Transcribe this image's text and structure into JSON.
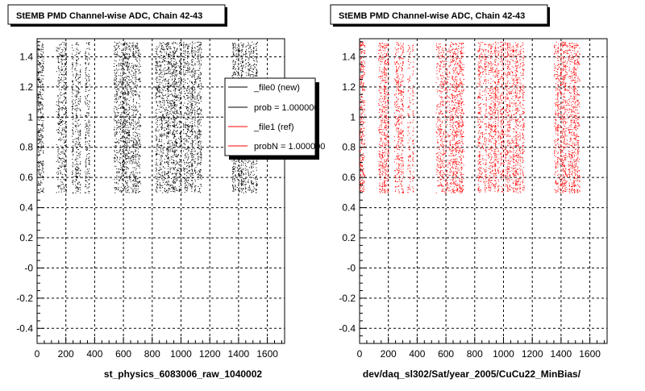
{
  "chart_data": [
    {
      "type": "scatter",
      "title": "StEMB PMD Channel-wise ADC, Chain 42-43",
      "xlabel": "st_physics_6083006_raw_1040002",
      "ylabel": "",
      "xlim": [
        0,
        1720
      ],
      "ylim": [
        -0.5,
        1.52
      ],
      "xticks": [
        0,
        200,
        400,
        600,
        800,
        1000,
        1200,
        1400,
        1600
      ],
      "xtick_labels": [
        "0",
        "200",
        "400",
        "600",
        "800",
        "1000",
        "1200",
        "1400",
        "1600"
      ],
      "yticks": [
        -0.4,
        -0.2,
        0,
        0.2,
        0.4,
        0.6,
        0.8,
        1,
        1.2,
        1.4
      ],
      "ytick_labels": [
        "-0.4",
        "-0.2",
        "-0",
        "0.2",
        "0.4",
        "0.6",
        "0.8",
        "1",
        "1.2",
        "1.4"
      ],
      "grid": true,
      "legend_position": "top-right",
      "legend": [
        {
          "label": "_file0 (new)",
          "color": "#000000"
        },
        {
          "label": "prob = 1.000000",
          "color": "#000000"
        },
        {
          "label": "_file1 (ref)",
          "color": "#ff0000"
        },
        {
          "label": "probN = 1.000000",
          "color": "#ff0000"
        }
      ],
      "series": [
        {
          "color": "#000000",
          "y_range": [
            0.5,
            1.5
          ],
          "channel_bands": [
            [
              0,
              40
            ],
            [
              130,
              200
            ],
            [
              240,
              300
            ],
            [
              330,
              370
            ],
            [
              530,
              720
            ],
            [
              820,
              1000
            ],
            [
              1010,
              1140
            ],
            [
              1350,
              1530
            ]
          ]
        }
      ]
    },
    {
      "type": "scatter",
      "title": "StEMB PMD Channel-wise ADC, Chain 42-43",
      "xlabel": "dev/daq_sl302/Sat/year_2005/CuCu22_MinBias/",
      "ylabel": "",
      "xlim": [
        0,
        1720
      ],
      "ylim": [
        -0.5,
        1.52
      ],
      "xticks": [
        0,
        200,
        400,
        600,
        800,
        1000,
        1200,
        1400,
        1600
      ],
      "xtick_labels": [
        "0",
        "200",
        "400",
        "600",
        "800",
        "1000",
        "1200",
        "1400",
        "1600"
      ],
      "yticks": [
        -0.4,
        -0.2,
        0,
        0.2,
        0.4,
        0.6,
        0.8,
        1,
        1.2,
        1.4
      ],
      "ytick_labels": [
        "-0.4",
        "-0.2",
        "-0",
        "0.2",
        "0.4",
        "0.6",
        "0.8",
        "1",
        "1.2",
        "1.4"
      ],
      "grid": true,
      "series": [
        {
          "color": "#ff0000",
          "y_range": [
            0.5,
            1.5
          ],
          "channel_bands": [
            [
              0,
              40
            ],
            [
              130,
              200
            ],
            [
              240,
              300
            ],
            [
              330,
              370
            ],
            [
              530,
              720
            ],
            [
              820,
              1000
            ],
            [
              1010,
              1140
            ],
            [
              1350,
              1530
            ]
          ]
        }
      ]
    }
  ]
}
